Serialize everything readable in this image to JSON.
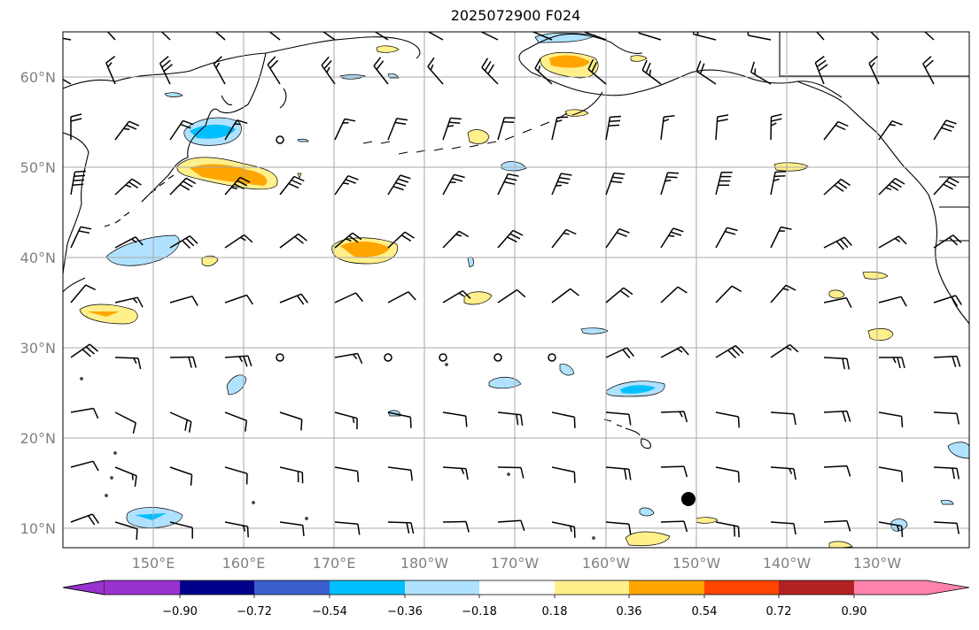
{
  "title": "2025072900 F024",
  "lat_labels": [
    "60°N",
    "50°N",
    "40°N",
    "30°N",
    "20°N",
    "10°N"
  ],
  "lon_labels": [
    "150°E",
    "160°E",
    "170°E",
    "180°W",
    "170°W",
    "160°W",
    "150°W",
    "140°W",
    "130°W"
  ],
  "colorbar": {
    "colors": [
      "#9a32cd",
      "#00008b",
      "#3a5fcd",
      "#00bfff",
      "#b0e2ff",
      "#ffffff",
      "#fff08b",
      "#ffa500",
      "#ff4500",
      "#b22222",
      "#ff82ab"
    ],
    "labels": [
      "−0.90",
      "−0.72",
      "−0.54",
      "−0.36",
      "−0.18",
      "0.18",
      "0.36",
      "0.54",
      "0.72",
      "0.90"
    ]
  },
  "marker": {
    "name": "point-marker",
    "lon": -151,
    "lat": 13.4
  },
  "style": {
    "land_line": "#000000",
    "grid": "#a9a9a9",
    "barb": "#000000"
  }
}
